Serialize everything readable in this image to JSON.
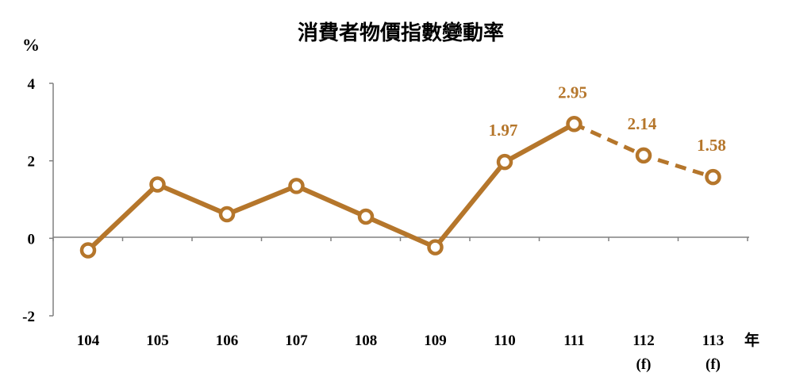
{
  "chart_data": {
    "type": "line",
    "title": "消費者物價指數變動率",
    "ylabel": "%",
    "xlabel": "年",
    "ylim": [
      -2,
      4
    ],
    "yticks": [
      4,
      2,
      0,
      -2
    ],
    "categories": [
      "104",
      "105",
      "106",
      "107",
      "108",
      "109",
      "110",
      "111",
      "112",
      "113"
    ],
    "category_notes": [
      "",
      "",
      "",
      "",
      "",
      "",
      "",
      "",
      "(f)",
      "(f)"
    ],
    "series": [
      {
        "values": [
          -0.31,
          1.39,
          0.62,
          1.35,
          0.56,
          -0.23,
          1.97,
          2.95,
          2.14,
          1.58
        ],
        "forecast_from_index": 7,
        "labeled_indices": [
          6,
          7,
          8,
          9
        ],
        "data_labels": [
          "",
          "",
          "",
          "",
          "",
          "",
          "1.97",
          "2.95",
          "2.14",
          "1.58"
        ],
        "color": "#b5762b"
      }
    ],
    "grid": false,
    "legend": "none"
  }
}
